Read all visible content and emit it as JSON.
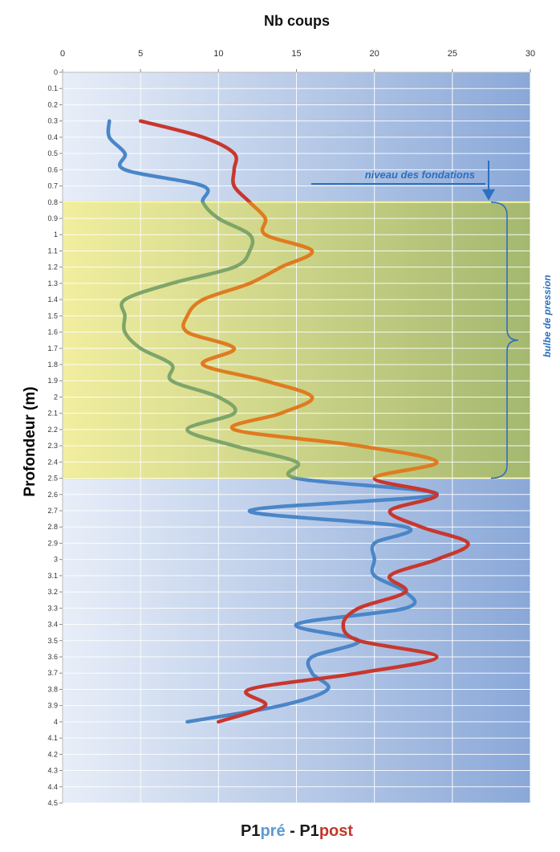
{
  "chart_data": {
    "type": "line",
    "title": "Nb coups",
    "xlabel": "Nb coups",
    "ylabel": "Profondeur (m)",
    "xlim": [
      0,
      30
    ],
    "ylim": [
      0,
      4.5
    ],
    "y_inverted": true,
    "x_axis_position": "top",
    "x_ticks": [
      "0",
      "5",
      "10",
      "15",
      "20",
      "25",
      "30"
    ],
    "y_ticks": [
      "0",
      "0.1",
      "0.2",
      "0.3",
      "0.4",
      "0.5",
      "0.6",
      "0.7",
      "0.8",
      "0.9",
      "1",
      "1.1",
      "1.2",
      "1.3",
      "1.4",
      "1.5",
      "1.6",
      "1.7",
      "1.8",
      "1.9",
      "2",
      "2.1",
      "2.2",
      "2.3",
      "2.4",
      "2.5",
      "2.6",
      "2.7",
      "2.8",
      "2.9",
      "3",
      "3.1",
      "3.2",
      "3.3",
      "3.4",
      "3.5",
      "3.6",
      "3.7",
      "3.8",
      "3.9",
      "4",
      "4.1",
      "4.2",
      "4.3",
      "4.4",
      "4.5"
    ],
    "grid": true,
    "series": [
      {
        "name": "P1pré",
        "color": "#4a86c8",
        "color_in_zone": "#7ea56a",
        "points": [
          [
            3,
            0.3
          ],
          [
            3,
            0.4
          ],
          [
            4,
            0.5
          ],
          [
            4,
            0.6
          ],
          [
            9,
            0.7
          ],
          [
            9,
            0.8
          ],
          [
            10,
            0.9
          ],
          [
            12,
            1.0
          ],
          [
            12,
            1.1
          ],
          [
            11,
            1.2
          ],
          [
            7,
            1.3
          ],
          [
            4,
            1.4
          ],
          [
            4,
            1.5
          ],
          [
            4,
            1.6
          ],
          [
            5,
            1.7
          ],
          [
            7,
            1.8
          ],
          [
            7,
            1.9
          ],
          [
            10,
            2.0
          ],
          [
            11,
            2.1
          ],
          [
            8,
            2.2
          ],
          [
            11,
            2.3
          ],
          [
            15,
            2.4
          ],
          [
            15,
            2.5
          ],
          [
            24,
            2.6
          ],
          [
            12,
            2.7
          ],
          [
            22,
            2.8
          ],
          [
            20,
            2.9
          ],
          [
            20,
            3.0
          ],
          [
            20,
            3.1
          ],
          [
            22,
            3.2
          ],
          [
            22,
            3.3
          ],
          [
            15,
            3.4
          ],
          [
            19,
            3.5
          ],
          [
            16,
            3.6
          ],
          [
            16,
            3.7
          ],
          [
            17,
            3.8
          ],
          [
            14,
            3.9
          ],
          [
            8,
            4.0
          ]
        ]
      },
      {
        "name": "P1post",
        "color": "#c8372d",
        "color_in_zone": "#e07b20",
        "points": [
          [
            5,
            0.3
          ],
          [
            9,
            0.4
          ],
          [
            11,
            0.5
          ],
          [
            11,
            0.6
          ],
          [
            11,
            0.7
          ],
          [
            12,
            0.8
          ],
          [
            13,
            0.9
          ],
          [
            13,
            1.0
          ],
          [
            16,
            1.1
          ],
          [
            14,
            1.2
          ],
          [
            12,
            1.3
          ],
          [
            9,
            1.4
          ],
          [
            8,
            1.5
          ],
          [
            8,
            1.6
          ],
          [
            11,
            1.7
          ],
          [
            9,
            1.8
          ],
          [
            13,
            1.9
          ],
          [
            16,
            2.0
          ],
          [
            14,
            2.1
          ],
          [
            11,
            2.2
          ],
          [
            19,
            2.3
          ],
          [
            24,
            2.4
          ],
          [
            20,
            2.5
          ],
          [
            24,
            2.6
          ],
          [
            21,
            2.7
          ],
          [
            23,
            2.8
          ],
          [
            26,
            2.9
          ],
          [
            24,
            3.0
          ],
          [
            21,
            3.1
          ],
          [
            22,
            3.2
          ],
          [
            19,
            3.3
          ],
          [
            18,
            3.4
          ],
          [
            19,
            3.5
          ],
          [
            24,
            3.6
          ],
          [
            19,
            3.7
          ],
          [
            12,
            3.8
          ],
          [
            13,
            3.9
          ],
          [
            10,
            4.0
          ]
        ]
      }
    ],
    "highlight_zone": {
      "y_from": 0.8,
      "y_to": 2.5,
      "color": "#e8e060"
    },
    "annotations": [
      {
        "text": "niveau des fondations",
        "points_to_y": 0.8
      },
      {
        "text": "bulbe de pression",
        "brace_from": 0.8,
        "brace_to": 2.5
      }
    ]
  },
  "bottom_label": {
    "p1_a": "P1",
    "pre": "pré",
    "sep": " - ",
    "p1_b": "P1",
    "post": "post"
  }
}
